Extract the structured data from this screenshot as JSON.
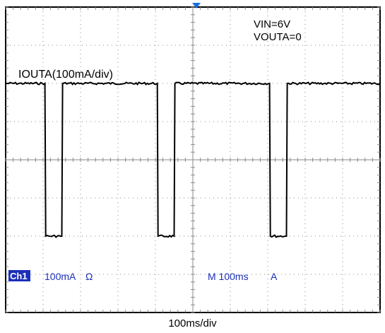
{
  "chart_data": {
    "type": "line",
    "title": "",
    "xlabel": "100ms/div",
    "ylabel": "",
    "annotations": {
      "vin": "VIN=6V",
      "vouta": "VOUTA=0",
      "trace_label": "IOUTA(100mA/div)"
    },
    "scope_readout": {
      "channel": "Ch1",
      "volts_per_div": "100mA",
      "coupling_symbol": "Ω",
      "timebase": "M 100ms",
      "trigger": "A"
    },
    "x_units": "ms",
    "y_units": "mA",
    "xlim": [
      0,
      1000
    ],
    "ylim": [
      -400,
      400
    ],
    "grid": true,
    "series": [
      {
        "name": "IOUTA",
        "x": [
          0,
          105,
          107,
          150,
          152,
          405,
          407,
          450,
          452,
          705,
          707,
          750,
          752,
          1000
        ],
        "y": [
          200,
          200,
          -200,
          -200,
          200,
          200,
          -200,
          -200,
          200,
          200,
          -200,
          -200,
          200,
          200
        ]
      }
    ],
    "colors": {
      "trace": "#000000",
      "grid": "#8a8a8a",
      "channel_badge_bg": "#1b2fb8",
      "channel_badge_text": "#ffffff",
      "readout_text": "#1b2fb8",
      "trigger_marker": "#1b6fe0"
    }
  }
}
